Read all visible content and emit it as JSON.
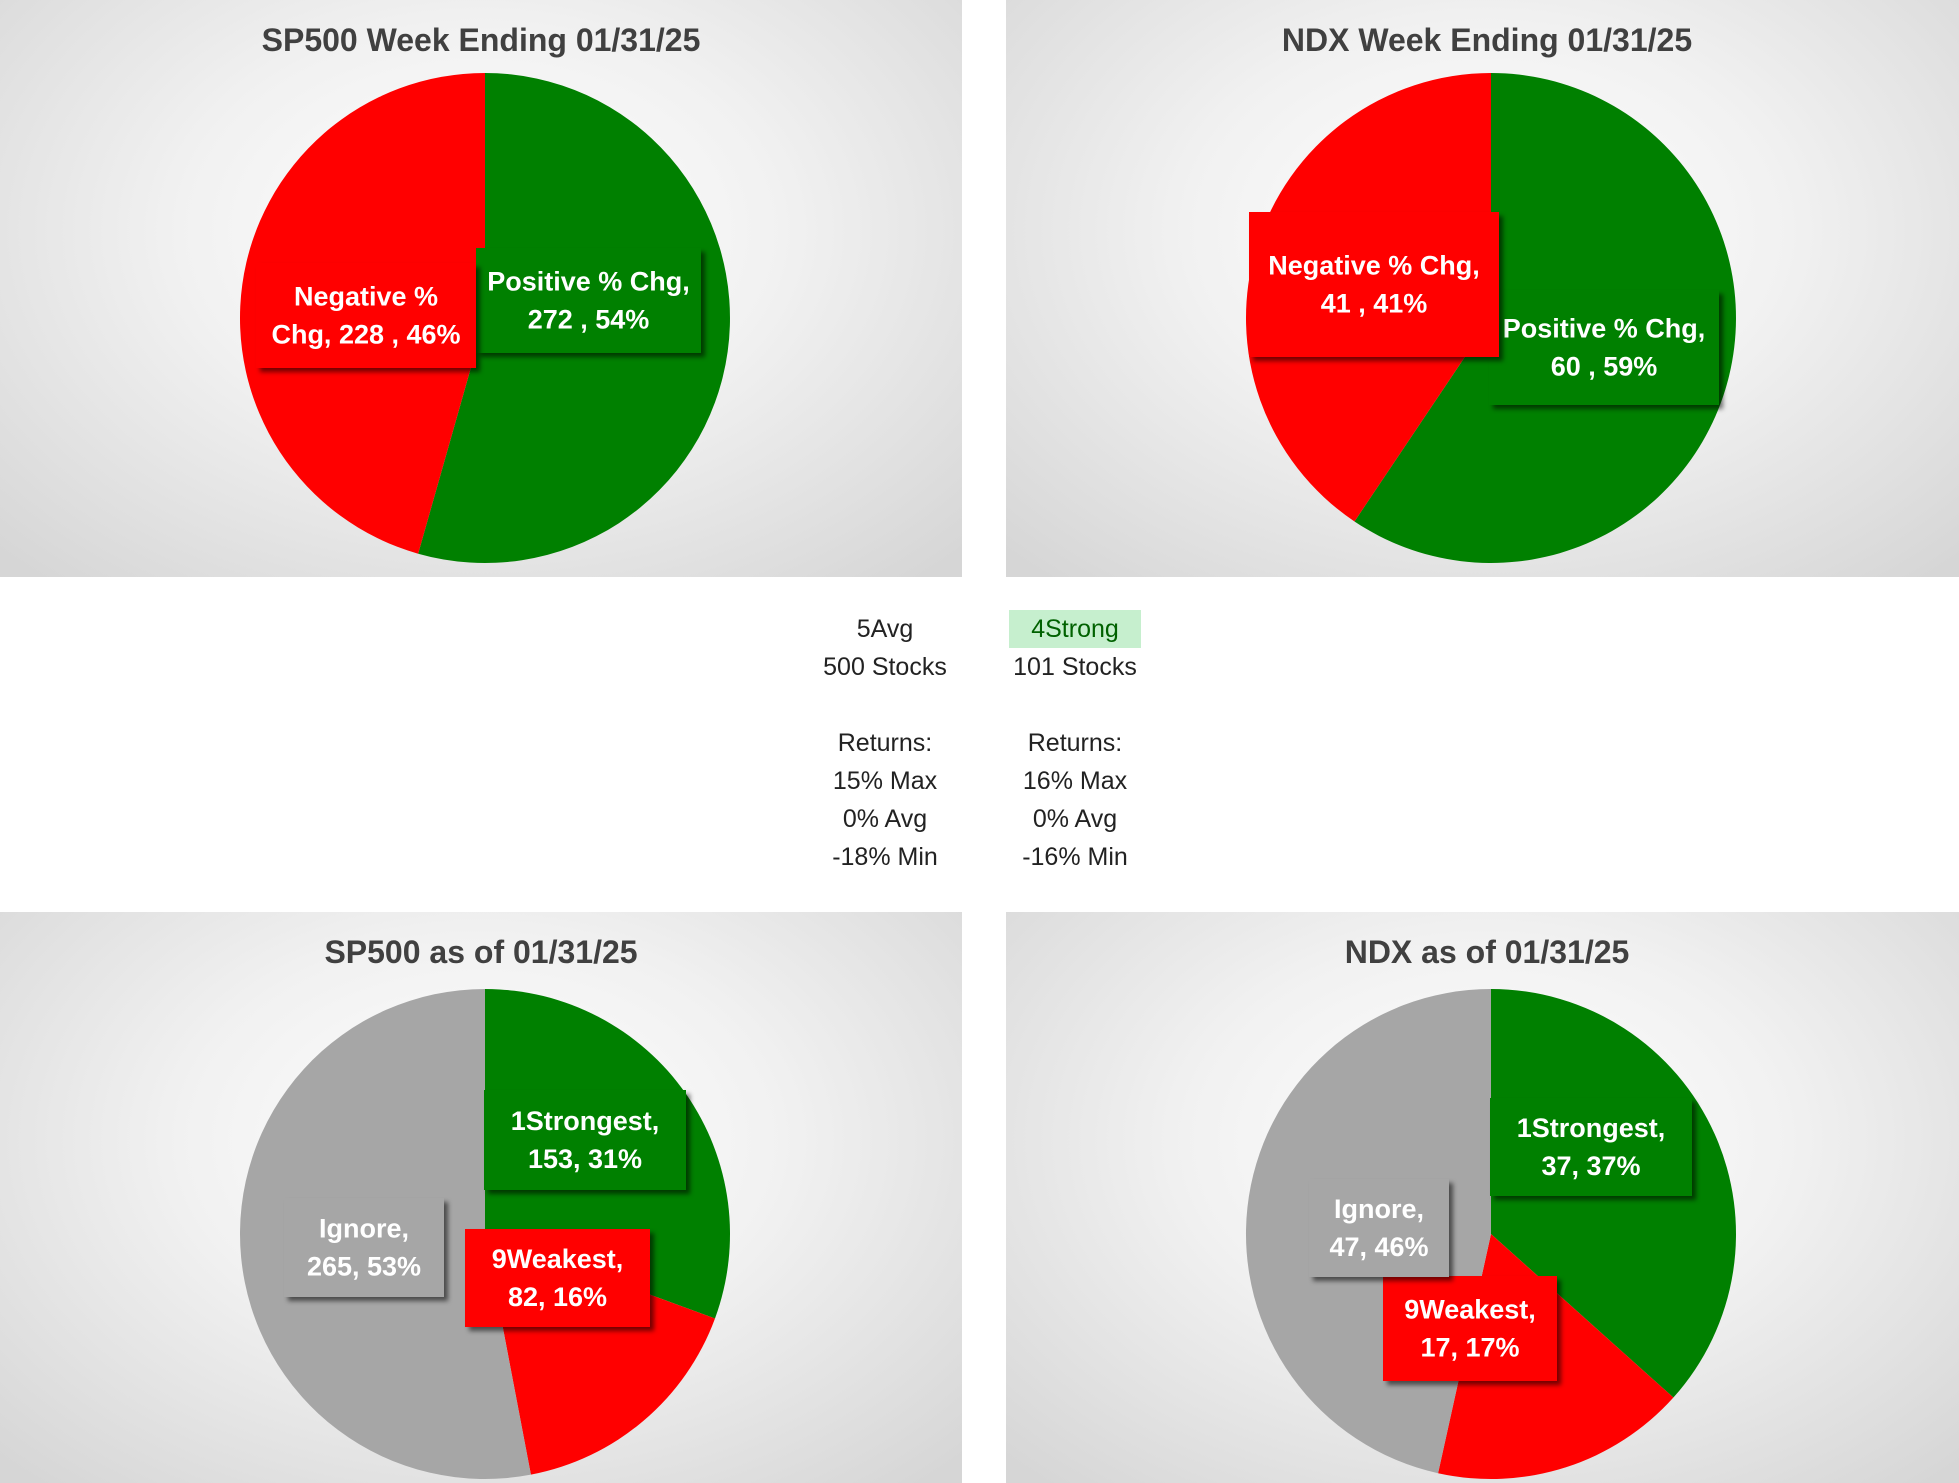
{
  "chart_data": [
    {
      "type": "pie",
      "title": "SP500 Week Ending 01/31/25",
      "slices": [
        {
          "label": "Positive % Chg",
          "value": 272,
          "percent": "54%",
          "color": "#008000",
          "text": [
            "Positive % Chg,",
            "272 , 54%"
          ]
        },
        {
          "label": "Negative % Chg",
          "value": 228,
          "percent": "46%",
          "color": "#ff0000",
          "text": [
            "Negative %",
            "Chg,  228 , 46%"
          ]
        }
      ]
    },
    {
      "type": "pie",
      "title": "NDX Week Ending 01/31/25",
      "slices": [
        {
          "label": "Positive % Chg",
          "value": 60,
          "percent": "59%",
          "color": "#008000",
          "text": [
            "Positive % Chg,",
            "60 , 59%"
          ]
        },
        {
          "label": "Negative % Chg",
          "value": 41,
          "percent": "41%",
          "color": "#ff0000",
          "text": [
            "Negative % Chg,",
            "41 , 41%"
          ]
        }
      ]
    },
    {
      "type": "pie",
      "title": "SP500 as of 01/31/25",
      "slices": [
        {
          "label": "1Strongest",
          "value": 153,
          "percent": "31%",
          "color": "#008000",
          "text": [
            "1Strongest,",
            "153, 31%"
          ]
        },
        {
          "label": "9Weakest",
          "value": 82,
          "percent": "16%",
          "color": "#ff0000",
          "text": [
            "9Weakest,",
            "82, 16%"
          ]
        },
        {
          "label": "Ignore",
          "value": 265,
          "percent": "53%",
          "color": "#a6a6a6",
          "text": [
            "Ignore,",
            "265, 53%"
          ]
        }
      ]
    },
    {
      "type": "pie",
      "title": "NDX as of 01/31/25",
      "slices": [
        {
          "label": "1Strongest",
          "value": 37,
          "percent": "37%",
          "color": "#008000",
          "text": [
            "1Strongest,",
            "37, 37%"
          ]
        },
        {
          "label": "9Weakest",
          "value": 17,
          "percent": "17%",
          "color": "#ff0000",
          "text": [
            "9Weakest,",
            "17, 17%"
          ]
        },
        {
          "label": "Ignore",
          "value": 47,
          "percent": "46%",
          "color": "#a6a6a6",
          "text": [
            "Ignore,",
            "47, 46%"
          ]
        }
      ]
    }
  ],
  "summary": {
    "sp500": {
      "rating": "5Avg",
      "stocks": "500 Stocks",
      "returns_label": "Returns:",
      "max": "15% Max",
      "avg": "0% Avg",
      "min": "-18% Min"
    },
    "ndx": {
      "rating": "4Strong",
      "stocks": "101 Stocks",
      "returns_label": "Returns:",
      "max": "16% Max",
      "avg": "0% Avg",
      "min": "-16% Min"
    }
  }
}
